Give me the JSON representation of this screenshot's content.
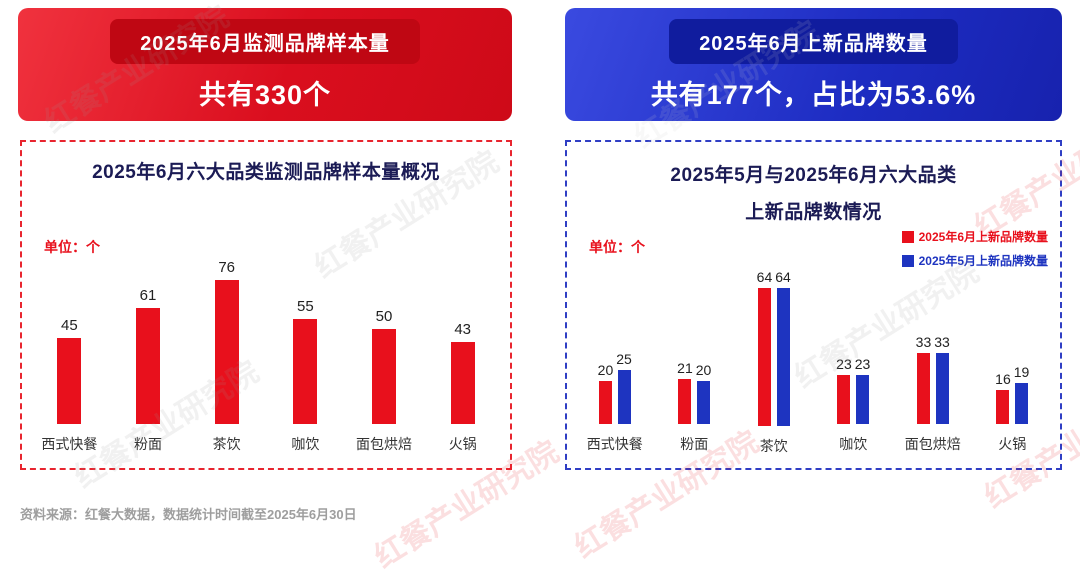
{
  "banners": {
    "left": {
      "title": "2025年6月监测品牌样本量",
      "subtitle": "共有330个",
      "accent": "#e60012"
    },
    "right": {
      "title": "2025年6月上新品牌数量",
      "subtitle": "共有177个，占比为53.6%",
      "accent": "#1f2eb8"
    }
  },
  "footer": {
    "source": "资料来源：红餐大数据，数据统计时间截至2025年6月30日"
  },
  "watermark": {
    "text": "红餐产业研究院"
  },
  "chart_data": [
    {
      "type": "bar",
      "title": "2025年6月六大品类监测品牌样本量概况",
      "unit_label": "单位：个",
      "categories": [
        "西式快餐",
        "粉面",
        "茶饮",
        "咖饮",
        "面包烘焙",
        "火锅"
      ],
      "values": [
        45,
        61,
        76,
        55,
        50,
        43
      ],
      "bar_color": "#e8101c",
      "ylim": [
        0,
        80
      ],
      "grid": false,
      "legend_position": "none",
      "value_labels": true
    },
    {
      "type": "bar",
      "title_line1": "2025年5月与2025年6月六大品类",
      "title_line2": "上新品牌数情况",
      "unit_label": "单位：个",
      "categories": [
        "西式快餐",
        "粉面",
        "茶饮",
        "咖饮",
        "面包烘焙",
        "火锅"
      ],
      "series": [
        {
          "name": "2025年6月上新品牌数量",
          "color": "#e8101c",
          "values": [
            20,
            21,
            64,
            23,
            33,
            16
          ]
        },
        {
          "name": "2025年5月上新品牌数量",
          "color": "#1e34c0",
          "values": [
            25,
            20,
            64,
            23,
            33,
            19
          ]
        }
      ],
      "ylim": [
        0,
        70
      ],
      "grid": false,
      "legend_position": "top-right",
      "value_labels": true
    }
  ]
}
